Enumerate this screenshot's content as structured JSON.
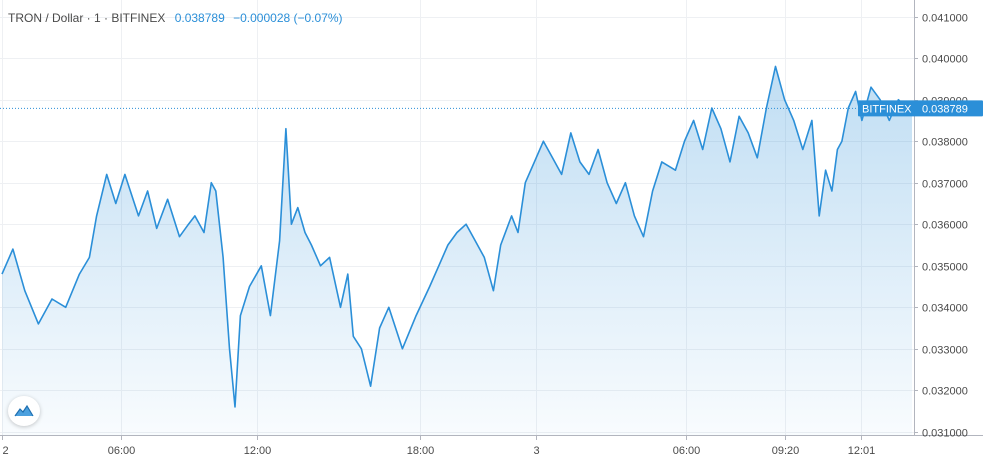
{
  "legend": {
    "symbol": "TRON / Dollar · 1 · BITFINEX",
    "last": "0.038789",
    "change": "−0.000028 (−0.07%)"
  },
  "colors": {
    "line": "#2b8fd8",
    "accent": "#2b8fd8",
    "grid": "#eef0f3",
    "text": "#4a4a4a"
  },
  "chart_data": {
    "type": "area",
    "symbol": "TRON / Dollar",
    "interval": "1",
    "exchange": "BITFINEX",
    "ylim": [
      0.0309,
      0.0414
    ],
    "y_ticks": [
      "0.041000",
      "0.040000",
      "0.039000",
      "0.038000",
      "0.037000",
      "0.036000",
      "0.035000",
      "0.034000",
      "0.033000",
      "0.032000",
      "0.031000"
    ],
    "x_ticks": [
      "2",
      "06:00",
      "12:00",
      "18:00",
      "3",
      "06:00",
      "09:20",
      "12:01"
    ],
    "x_tick_pos": [
      0,
      0.131,
      0.28,
      0.459,
      0.587,
      0.752,
      0.86,
      0.944
    ],
    "last_price": 0.038789,
    "last_label": "BITFINEX",
    "last_price_label": "0.038789",
    "grid": true,
    "y_axis_position": "right",
    "x": [
      0.0,
      0.012,
      0.025,
      0.04,
      0.055,
      0.07,
      0.085,
      0.096,
      0.104,
      0.115,
      0.125,
      0.135,
      0.15,
      0.16,
      0.17,
      0.182,
      0.195,
      0.205,
      0.212,
      0.222,
      0.23,
      0.235,
      0.243,
      0.25,
      0.256,
      0.262,
      0.272,
      0.285,
      0.295,
      0.305,
      0.312,
      0.318,
      0.325,
      0.333,
      0.34,
      0.35,
      0.36,
      0.372,
      0.38,
      0.386,
      0.395,
      0.405,
      0.415,
      0.425,
      0.44,
      0.455,
      0.47,
      0.48,
      0.49,
      0.5,
      0.51,
      0.52,
      0.53,
      0.54,
      0.548,
      0.56,
      0.567,
      0.575,
      0.585,
      0.595,
      0.605,
      0.615,
      0.625,
      0.635,
      0.645,
      0.655,
      0.665,
      0.675,
      0.685,
      0.695,
      0.705,
      0.715,
      0.725,
      0.74,
      0.75,
      0.76,
      0.77,
      0.78,
      0.79,
      0.8,
      0.81,
      0.82,
      0.83,
      0.84,
      0.85,
      0.86,
      0.87,
      0.88,
      0.89,
      0.898,
      0.905,
      0.912,
      0.918,
      0.923,
      0.93,
      0.938,
      0.945,
      0.955,
      0.965,
      0.975,
      0.985,
      0.994,
      1.0
    ],
    "values": [
      0.0348,
      0.0354,
      0.0344,
      0.0336,
      0.0342,
      0.034,
      0.0348,
      0.0352,
      0.0362,
      0.0372,
      0.0365,
      0.0372,
      0.0362,
      0.0368,
      0.0359,
      0.0366,
      0.0357,
      0.036,
      0.0362,
      0.0358,
      0.037,
      0.0368,
      0.0352,
      0.033,
      0.0316,
      0.0338,
      0.0345,
      0.035,
      0.0338,
      0.0356,
      0.0383,
      0.036,
      0.0364,
      0.0358,
      0.0355,
      0.035,
      0.0352,
      0.034,
      0.0348,
      0.0333,
      0.033,
      0.0321,
      0.0335,
      0.034,
      0.033,
      0.0338,
      0.0345,
      0.035,
      0.0355,
      0.0358,
      0.036,
      0.0356,
      0.0352,
      0.0344,
      0.0355,
      0.0362,
      0.0358,
      0.037,
      0.0375,
      0.038,
      0.0376,
      0.0372,
      0.0382,
      0.0375,
      0.0372,
      0.0378,
      0.037,
      0.0365,
      0.037,
      0.0362,
      0.0357,
      0.0368,
      0.0375,
      0.0373,
      0.038,
      0.0385,
      0.0378,
      0.0388,
      0.0383,
      0.0375,
      0.0386,
      0.0382,
      0.0376,
      0.0388,
      0.0398,
      0.039,
      0.0385,
      0.0378,
      0.0385,
      0.0362,
      0.0373,
      0.0368,
      0.0378,
      0.038,
      0.0388,
      0.0392,
      0.0385,
      0.0393,
      0.039,
      0.0385,
      0.039,
      0.0388,
      0.03879
    ]
  }
}
